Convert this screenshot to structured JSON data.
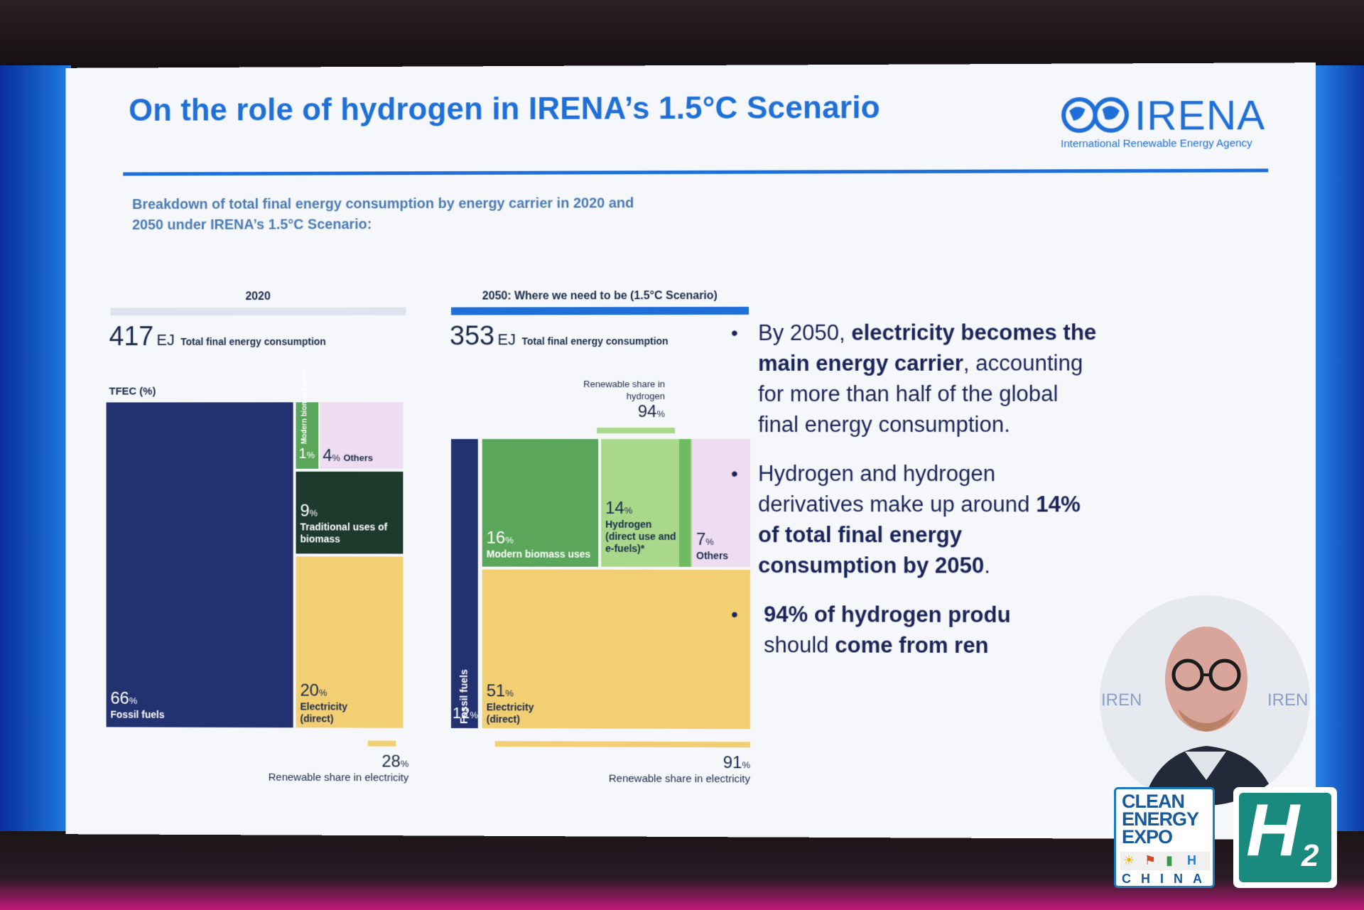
{
  "slide": {
    "title": "On the role of hydrogen in IRENA’s 1.5°C Scenario",
    "subtitle": "Breakdown of total final energy consumption by energy carrier in 2020 and 2050 under IRENA’s 1.5°C Scenario:",
    "logo": {
      "name": "IRENA",
      "tagline": "International Renewable Energy Agency"
    }
  },
  "chart_data": [
    {
      "type": "treemap",
      "title": "2020",
      "total_value": "417",
      "total_unit": "EJ",
      "total_label": "Total final energy consumption",
      "axis_label": "TFEC (%)",
      "segments": [
        {
          "name": "Fossil fuels",
          "value": 66
        },
        {
          "name": "Modern biomass uses",
          "value": 1
        },
        {
          "name": "Others",
          "value": 4
        },
        {
          "name": "Traditional uses of biomass",
          "value": 9
        },
        {
          "name": "Electricity (direct)",
          "value": 20
        }
      ],
      "renewable_share_electricity": 28,
      "renewable_caption": "Renewable share in electricity"
    },
    {
      "type": "treemap",
      "title": "2050: Where we need to be (1.5°C Scenario)",
      "total_value": "353",
      "total_unit": "EJ",
      "total_label": "Total final energy consumption",
      "segments": [
        {
          "name": "Fossil fuels",
          "value": 12
        },
        {
          "name": "Modern biomass uses",
          "value": 16
        },
        {
          "name": "Hydrogen (direct use and e-fuels)*",
          "value": 14
        },
        {
          "name": "Others",
          "value": 7
        },
        {
          "name": "Electricity (direct)",
          "value": 51
        }
      ],
      "renewable_share_hydrogen": 94,
      "hydrogen_caption": "Renewable share in hydrogen",
      "renewable_share_electricity": 91,
      "renewable_caption": "Renewable share in electricity"
    }
  ],
  "labels": {
    "pct": "%",
    "fossil": "Fossil fuels",
    "modern_biomass_vertical": "Modern biomass uses",
    "others": "Others",
    "traditional": "Traditional uses of biomass",
    "electricity": "Electricity (direct)",
    "modern_biomass": "Modern biomass uses",
    "hydrogen": "Hydrogen (direct use and e-fuels)*"
  },
  "bullets": [
    {
      "pre": "By 2050, ",
      "bold": "electricity becomes the main energy carrier",
      "post": ", accounting for more than half of the global final energy consumption."
    },
    {
      "pre": "Hydrogen and hydrogen derivatives make up around ",
      "bold": "14% of total final energy consumption by 2050",
      "post": "."
    },
    {
      "pre": "",
      "bold": "94% of hydrogen produ",
      "post": ""
    },
    {
      "pre": "should ",
      "bold": "come from ren",
      "post": ""
    }
  ],
  "overlay": {
    "speaker_bg_text_left": "IREN",
    "speaker_bg_text_right": "IREN",
    "expo_line1": "CLEAN",
    "expo_line2": "ENERGY",
    "expo_line3": "EXPO",
    "expo_country": "CHINA",
    "h2_letter": "H",
    "h2_sub": "2"
  },
  "colors": {
    "accent": "#1e6fd8",
    "fossil": "#22316f",
    "modern_biomass": "#5aa65a",
    "hydrogen": "#a8d88a",
    "others": "#eedcf0",
    "traditional": "#1d3a2c",
    "electricity": "#f3cf74"
  }
}
